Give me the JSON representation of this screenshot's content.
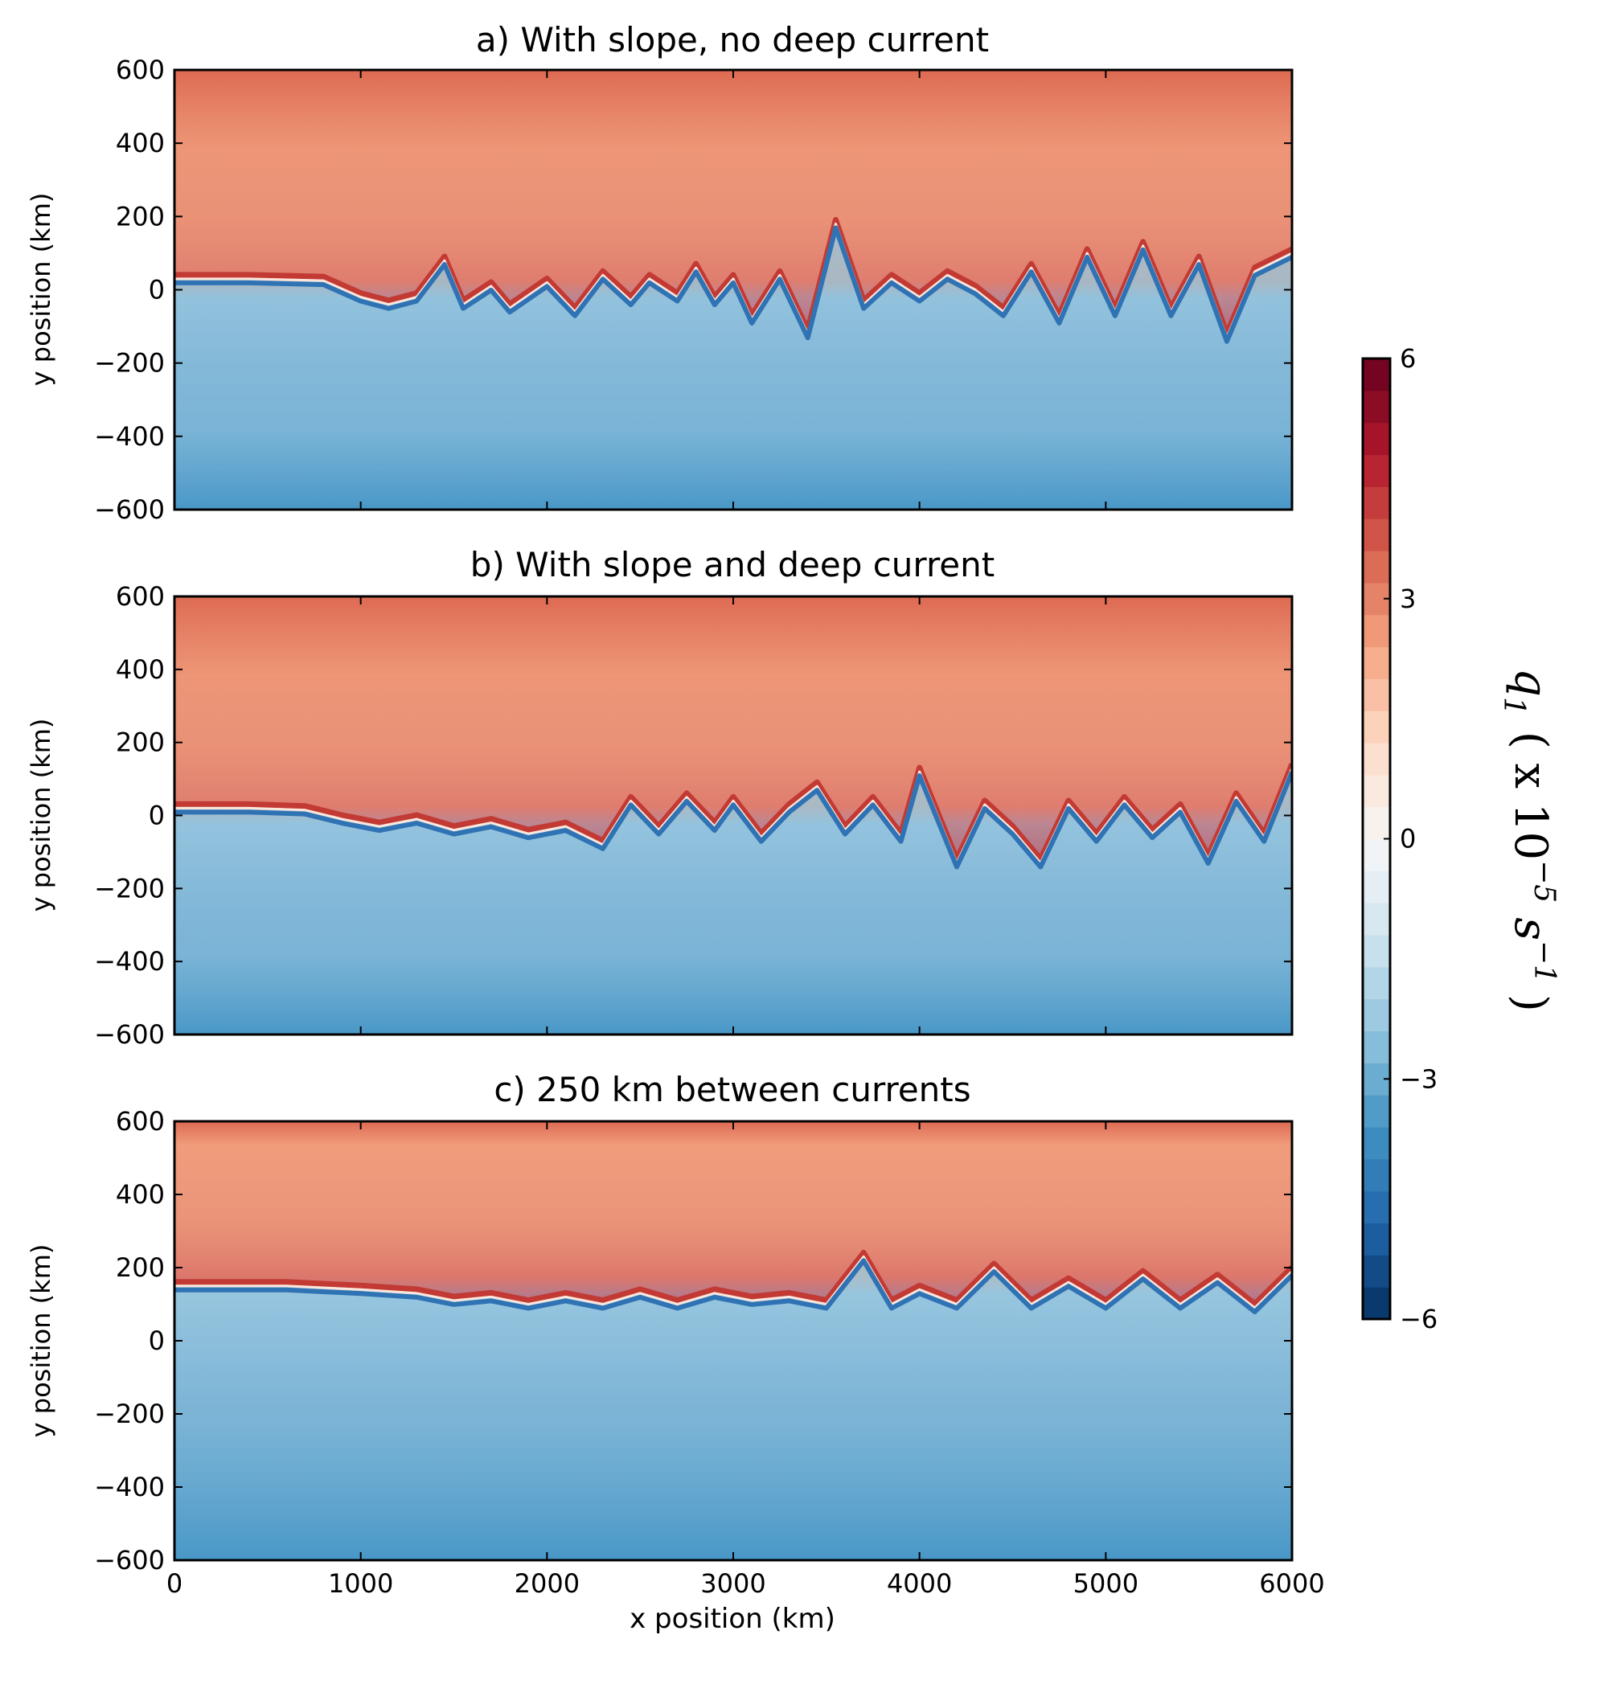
{
  "chart_data": [
    {
      "type": "heatmap",
      "title": "a) With slope, no deep current",
      "xlabel": "",
      "ylabel": "y position (km)",
      "xlim": [
        0,
        6000
      ],
      "ylim": [
        -600,
        600
      ],
      "x_ticks": [
        "0",
        "1000",
        "2000",
        "3000",
        "4000",
        "5000",
        "6000"
      ],
      "y_ticks": [
        "600",
        "400",
        "200",
        "0",
        "−200",
        "−400",
        "−600"
      ],
      "front_y_km": 0,
      "front_profile": [
        [
          0,
          30
        ],
        [
          400,
          30
        ],
        [
          800,
          25
        ],
        [
          1000,
          -20
        ],
        [
          1150,
          -40
        ],
        [
          1300,
          -20
        ],
        [
          1450,
          80
        ],
        [
          1550,
          -40
        ],
        [
          1700,
          10
        ],
        [
          1800,
          -50
        ],
        [
          2000,
          20
        ],
        [
          2150,
          -60
        ],
        [
          2300,
          40
        ],
        [
          2450,
          -30
        ],
        [
          2550,
          30
        ],
        [
          2700,
          -20
        ],
        [
          2800,
          60
        ],
        [
          2900,
          -30
        ],
        [
          3000,
          30
        ],
        [
          3100,
          -80
        ],
        [
          3250,
          40
        ],
        [
          3400,
          -120
        ],
        [
          3550,
          180
        ],
        [
          3700,
          -40
        ],
        [
          3850,
          30
        ],
        [
          4000,
          -20
        ],
        [
          4150,
          40
        ],
        [
          4300,
          0
        ],
        [
          4450,
          -60
        ],
        [
          4600,
          60
        ],
        [
          4750,
          -80
        ],
        [
          4900,
          100
        ],
        [
          5050,
          -60
        ],
        [
          5200,
          120
        ],
        [
          5350,
          -60
        ],
        [
          5500,
          80
        ],
        [
          5650,
          -130
        ],
        [
          5800,
          50
        ],
        [
          6000,
          100
        ]
      ]
    },
    {
      "type": "heatmap",
      "title": "b) With slope and deep current",
      "xlabel": "",
      "ylabel": "y position (km)",
      "xlim": [
        0,
        6000
      ],
      "ylim": [
        -600,
        600
      ],
      "x_ticks": [
        "0",
        "1000",
        "2000",
        "3000",
        "4000",
        "5000",
        "6000"
      ],
      "y_ticks": [
        "600",
        "400",
        "200",
        "0",
        "−200",
        "−400",
        "−600"
      ],
      "front_y_km": 0,
      "front_profile": [
        [
          0,
          20
        ],
        [
          400,
          20
        ],
        [
          700,
          15
        ],
        [
          900,
          -10
        ],
        [
          1100,
          -30
        ],
        [
          1300,
          -10
        ],
        [
          1500,
          -40
        ],
        [
          1700,
          -20
        ],
        [
          1900,
          -50
        ],
        [
          2100,
          -30
        ],
        [
          2300,
          -80
        ],
        [
          2450,
          40
        ],
        [
          2600,
          -40
        ],
        [
          2750,
          50
        ],
        [
          2900,
          -30
        ],
        [
          3000,
          40
        ],
        [
          3150,
          -60
        ],
        [
          3300,
          20
        ],
        [
          3450,
          80
        ],
        [
          3600,
          -40
        ],
        [
          3750,
          40
        ],
        [
          3900,
          -60
        ],
        [
          4000,
          120
        ],
        [
          4200,
          -130
        ],
        [
          4350,
          30
        ],
        [
          4500,
          -40
        ],
        [
          4650,
          -130
        ],
        [
          4800,
          30
        ],
        [
          4950,
          -60
        ],
        [
          5100,
          40
        ],
        [
          5250,
          -50
        ],
        [
          5400,
          20
        ],
        [
          5550,
          -120
        ],
        [
          5700,
          50
        ],
        [
          5850,
          -60
        ],
        [
          6000,
          130
        ]
      ]
    },
    {
      "type": "heatmap",
      "title": "c) 250 km between currents",
      "xlabel": "x position (km)",
      "ylabel": "y position (km)",
      "xlim": [
        0,
        6000
      ],
      "ylim": [
        -600,
        600
      ],
      "x_ticks": [
        "0",
        "1000",
        "2000",
        "3000",
        "4000",
        "5000",
        "6000"
      ],
      "y_ticks": [
        "600",
        "400",
        "200",
        "0",
        "−200",
        "−400",
        "−600"
      ],
      "front_y_km": 150,
      "front_profile": [
        [
          0,
          150
        ],
        [
          600,
          150
        ],
        [
          1000,
          140
        ],
        [
          1300,
          130
        ],
        [
          1500,
          110
        ],
        [
          1700,
          120
        ],
        [
          1900,
          100
        ],
        [
          2100,
          120
        ],
        [
          2300,
          100
        ],
        [
          2500,
          130
        ],
        [
          2700,
          100
        ],
        [
          2900,
          130
        ],
        [
          3100,
          110
        ],
        [
          3300,
          120
        ],
        [
          3500,
          100
        ],
        [
          3700,
          230
        ],
        [
          3850,
          100
        ],
        [
          4000,
          140
        ],
        [
          4200,
          100
        ],
        [
          4400,
          200
        ],
        [
          4600,
          100
        ],
        [
          4800,
          160
        ],
        [
          5000,
          100
        ],
        [
          5200,
          180
        ],
        [
          5400,
          100
        ],
        [
          5600,
          170
        ],
        [
          5800,
          90
        ],
        [
          6000,
          190
        ]
      ]
    }
  ],
  "colorbar": {
    "ticks": [
      "6",
      "3",
      "0",
      "−3",
      "−6"
    ],
    "tick_values": [
      6,
      3,
      0,
      -3,
      -6
    ],
    "range": [
      -6,
      6
    ],
    "levels": 30,
    "label_main": "q",
    "label_sub": "1",
    "label_rest": "( x 10",
    "label_exp": "−5",
    "label_unit": "s",
    "label_unit_exp": "−1",
    "label_close": ")",
    "colormap": [
      "#053061",
      "#2166ac",
      "#4393c3",
      "#92c5de",
      "#d1e5f0",
      "#f7f7f7",
      "#fddbc7",
      "#f4a582",
      "#d6604d",
      "#b2182b",
      "#67001f"
    ]
  }
}
